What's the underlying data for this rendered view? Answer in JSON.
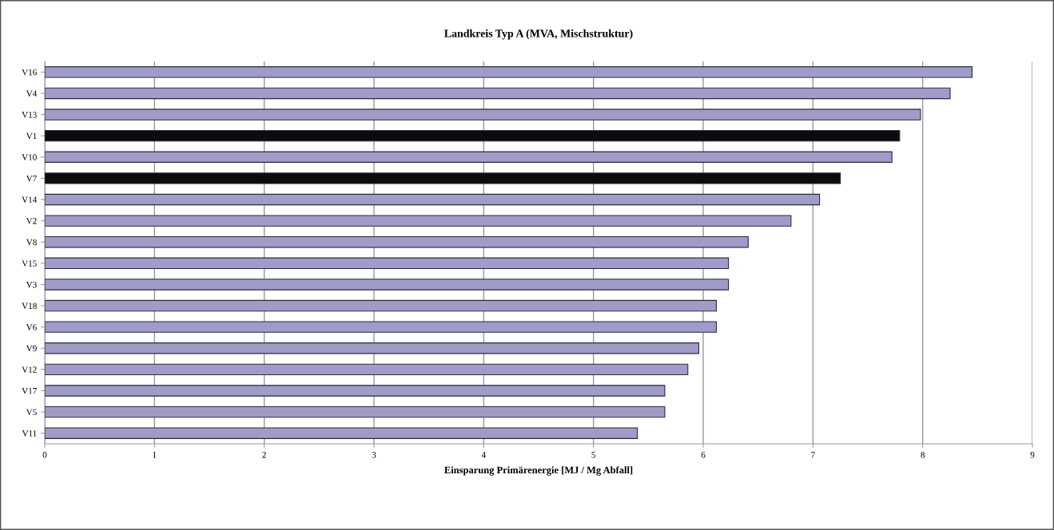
{
  "chart_data": {
    "type": "bar",
    "orientation": "horizontal",
    "title": "Landkreis Typ A (MVA, Mischstruktur)",
    "xlabel": "Einsparung Primärenergie [MJ / Mg Abfall]",
    "categories": [
      "V16",
      "V4",
      "V13",
      "V1",
      "V10",
      "V7",
      "V14",
      "V2",
      "V8",
      "V15",
      "V3",
      "V18",
      "V6",
      "V9",
      "V12",
      "V17",
      "V5",
      "V11"
    ],
    "values": [
      8.45,
      8.25,
      7.98,
      7.79,
      7.72,
      7.25,
      7.06,
      6.8,
      6.41,
      6.23,
      6.23,
      6.12,
      6.12,
      5.96,
      5.86,
      5.65,
      5.65,
      5.4
    ],
    "colors": [
      "#a09cc8",
      "#a09cc8",
      "#a09cc8",
      "#0a0c0e",
      "#a09cc8",
      "#0a0c0e",
      "#a09cc8",
      "#a09cc8",
      "#a09cc8",
      "#a09cc8",
      "#a09cc8",
      "#a09cc8",
      "#a09cc8",
      "#a09cc8",
      "#a09cc8",
      "#a09cc8",
      "#a09cc8",
      "#a09cc8"
    ],
    "xlim": [
      0,
      9
    ],
    "xticks": [
      0,
      1,
      2,
      3,
      4,
      5,
      6,
      7,
      8,
      9
    ],
    "grid": "x"
  }
}
